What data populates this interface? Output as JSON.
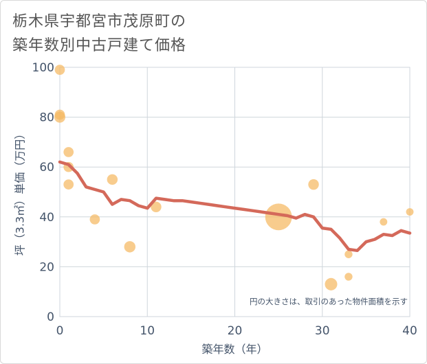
{
  "chart_data": {
    "type": "scatter",
    "title_lines": [
      "栃木県宇都宮市茂原町の",
      "築年数別中古戸建て価格"
    ],
    "xlabel": "築年数（年）",
    "ylabel": "坪（3.3㎡）単価（万円）",
    "xlim": [
      0,
      40
    ],
    "ylim": [
      0,
      100
    ],
    "xticks": [
      0,
      10,
      20,
      30,
      40
    ],
    "yticks": [
      0,
      20,
      40,
      60,
      80,
      100
    ],
    "grid": true,
    "note": "円の大きさは、取引のあった物件面積を示す",
    "colors": {
      "bubble": "#f5b961",
      "line": "#d4695a",
      "grid": "#cfd6dc",
      "text": "#44546a"
    },
    "bubbles": [
      {
        "x": 0,
        "y": 99,
        "size": 2
      },
      {
        "x": 0,
        "y": 81,
        "size": 2
      },
      {
        "x": 0,
        "y": 80,
        "size": 2.4
      },
      {
        "x": 1,
        "y": 66,
        "size": 2
      },
      {
        "x": 1,
        "y": 60,
        "size": 2
      },
      {
        "x": 1,
        "y": 53,
        "size": 2
      },
      {
        "x": 4,
        "y": 39,
        "size": 2
      },
      {
        "x": 6,
        "y": 55,
        "size": 2.2
      },
      {
        "x": 8,
        "y": 28,
        "size": 2.5
      },
      {
        "x": 11,
        "y": 44,
        "size": 2.2
      },
      {
        "x": 25,
        "y": 40,
        "size": 14
      },
      {
        "x": 29,
        "y": 53,
        "size": 2.2
      },
      {
        "x": 31,
        "y": 13,
        "size": 3
      },
      {
        "x": 33,
        "y": 25,
        "size": 1.2
      },
      {
        "x": 33,
        "y": 16,
        "size": 1.2
      },
      {
        "x": 37,
        "y": 38,
        "size": 1.1
      },
      {
        "x": 40,
        "y": 42,
        "size": 1.1
      }
    ],
    "trend": {
      "x": [
        0,
        1,
        2,
        3,
        4,
        5,
        6,
        7,
        8,
        9,
        10,
        11,
        12,
        13,
        14,
        15,
        16,
        17,
        18,
        19,
        20,
        21,
        22,
        23,
        24,
        25,
        26,
        27,
        28,
        29,
        30,
        31,
        32,
        33,
        34,
        35,
        36,
        37,
        38,
        39,
        40
      ],
      "y": [
        62,
        61,
        57.5,
        52,
        51,
        50,
        45,
        47,
        46.5,
        44.5,
        43.5,
        47.5,
        47,
        46.5,
        46.5,
        46,
        45.5,
        45,
        44.5,
        44,
        43.5,
        43,
        42.5,
        42,
        41.5,
        41,
        40.5,
        39.5,
        41,
        40,
        35.5,
        35,
        31.5,
        27,
        26.5,
        30,
        31,
        33,
        32.5,
        34.5,
        33.5
      ]
    }
  }
}
